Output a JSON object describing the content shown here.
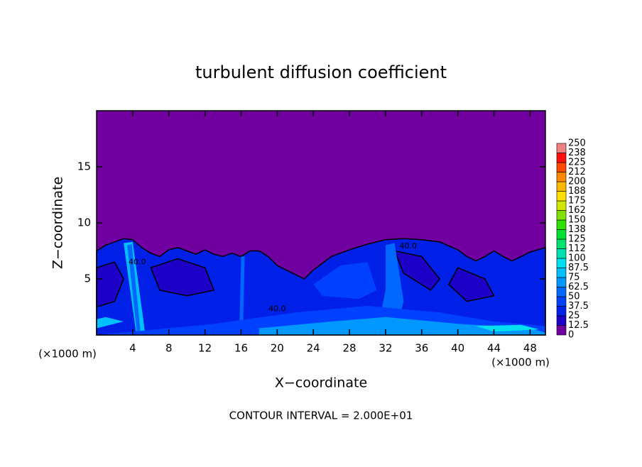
{
  "chart_data": {
    "type": "contour",
    "title": "turbulent diffusion coefficient",
    "x_label": "X−coordinate",
    "y_label": "Z−coordinate",
    "x_unit_left": "(×1000 m)",
    "x_unit_right": "(×1000 m)",
    "note": "CONTOUR INTERVAL = 2.000E+01",
    "contour_labels": [
      "40.0",
      "40.0",
      "40.0"
    ],
    "xlim": [
      0,
      49.7
    ],
    "xticks": [
      4,
      8,
      12,
      16,
      20,
      24,
      28,
      32,
      36,
      40,
      44,
      48
    ],
    "ylim": [
      0,
      20
    ],
    "yticks": [
      5,
      10,
      15
    ],
    "colorbar": {
      "lim": [
        0,
        250
      ],
      "ticks": [
        0,
        12.5,
        25,
        37.5,
        50,
        62.5,
        75,
        87.5,
        100,
        {
          "value": 112.5,
          "label": "112"
        },
        125,
        {
          "value": 137.5,
          "label": "138"
        },
        150,
        {
          "value": 162.5,
          "label": "162"
        },
        175,
        {
          "value": 187.5,
          "label": "188"
        },
        200,
        {
          "value": 212.5,
          "label": "212"
        },
        225,
        {
          "value": 237.5,
          "label": "238"
        },
        250
      ],
      "colors": [
        "#7000a0",
        "#1c00c8",
        "#0020e8",
        "#0040ff",
        "#0068ff",
        "#0098ff",
        "#00c0ff",
        "#00e0f0",
        "#00e0b0",
        "#00e070",
        "#00e030",
        "#30e000",
        "#80e000",
        "#d0e800",
        "#ffe000",
        "#ffb800",
        "#ff8800",
        "#ff4800",
        "#ff1010",
        "#f08080"
      ]
    }
  }
}
